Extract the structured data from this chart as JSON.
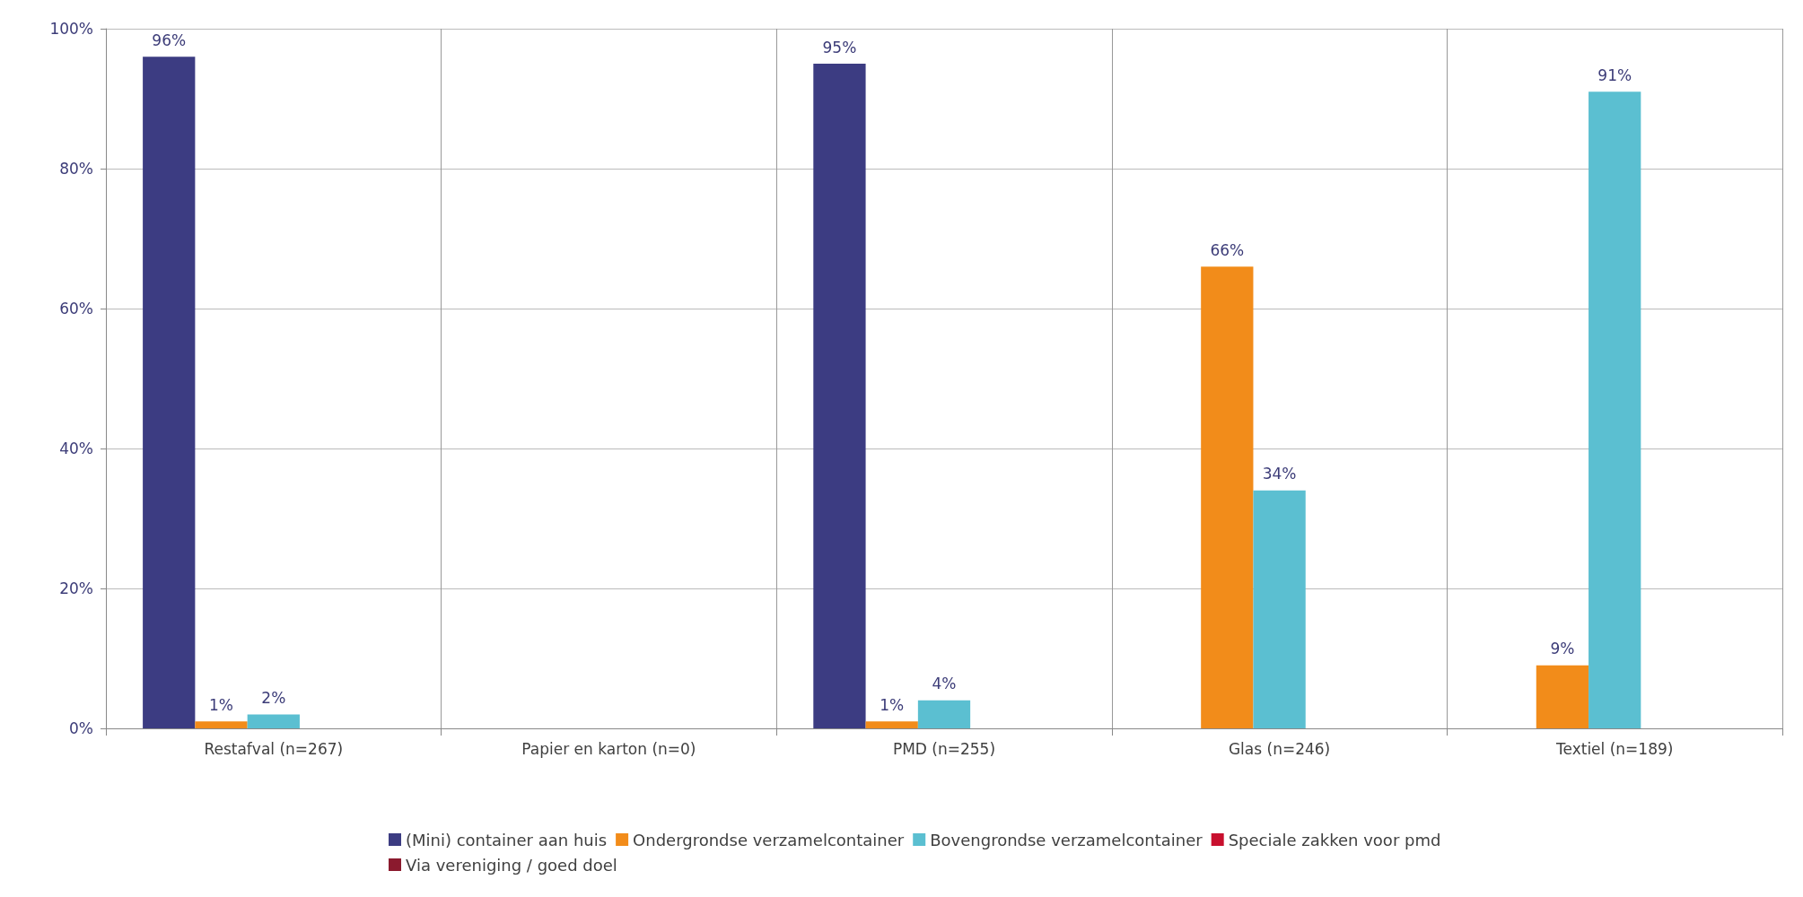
{
  "chart_data": {
    "type": "bar",
    "categories": [
      "Restafval (n=267)",
      "Papier en karton (n=0)",
      "PMD (n=255)",
      "Glas (n=246)",
      "Textiel (n=189)"
    ],
    "series": [
      {
        "name": "(Mini) container aan huis",
        "color": "#3c3c82",
        "values": [
          96,
          null,
          95,
          null,
          null
        ],
        "value_labels": [
          "96%",
          null,
          "95%",
          null,
          null
        ]
      },
      {
        "name": "Ondergrondse verzamelcontainer",
        "color": "#f28c1a",
        "values": [
          1,
          null,
          1,
          66,
          9
        ],
        "value_labels": [
          "1%",
          null,
          "1%",
          "66%",
          "9%"
        ]
      },
      {
        "name": "Bovengrondse verzamelcontainer",
        "color": "#5bbfd1",
        "values": [
          2,
          null,
          4,
          34,
          91
        ],
        "value_labels": [
          "2%",
          null,
          "4%",
          "34%",
          "91%"
        ]
      },
      {
        "name": "Speciale zakken voor pmd",
        "color": "#c8102e",
        "values": [
          null,
          null,
          null,
          null,
          null
        ]
      },
      {
        "name": "Via vereniging / goed doel",
        "color": "#8b1a2e",
        "values": [
          null,
          null,
          null,
          null,
          null
        ]
      }
    ],
    "ylim": [
      0,
      100
    ],
    "yticks": [
      {
        "value": 0,
        "label": "0%"
      },
      {
        "value": 20,
        "label": "20%"
      },
      {
        "value": 40,
        "label": "40%"
      },
      {
        "value": 60,
        "label": "60%"
      },
      {
        "value": 80,
        "label": "80%"
      },
      {
        "value": 100,
        "label": "100%"
      }
    ],
    "grid": true,
    "legend": "bottom"
  }
}
